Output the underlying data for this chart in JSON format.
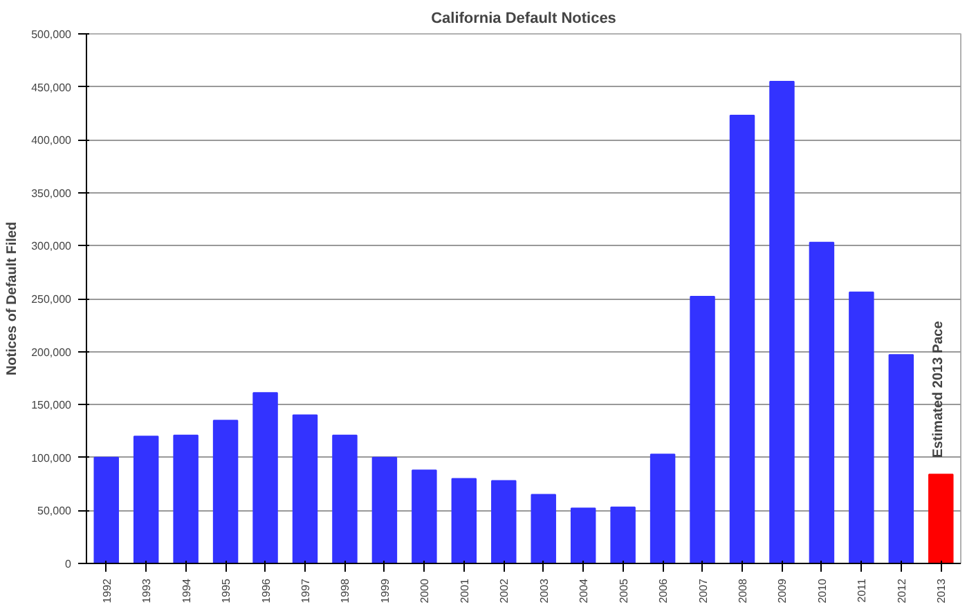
{
  "chart_data": {
    "type": "bar",
    "title": "California Default Notices",
    "ylabel": "Notices of Default Filed",
    "categories": [
      "1992",
      "1993",
      "1994",
      "1995",
      "1996",
      "1997",
      "1998",
      "1999",
      "2000",
      "2001",
      "2002",
      "2003",
      "2004",
      "2005",
      "2006",
      "2007",
      "2008",
      "2009",
      "2010",
      "2011",
      "2012",
      "2013"
    ],
    "values": [
      100000,
      120000,
      121000,
      135000,
      161000,
      140000,
      121000,
      100000,
      88000,
      80000,
      78000,
      65000,
      52000,
      53000,
      103000,
      252000,
      423000,
      455000,
      303000,
      256000,
      197000,
      84000
    ],
    "colors": [
      "#3333ff",
      "#3333ff",
      "#3333ff",
      "#3333ff",
      "#3333ff",
      "#3333ff",
      "#3333ff",
      "#3333ff",
      "#3333ff",
      "#3333ff",
      "#3333ff",
      "#3333ff",
      "#3333ff",
      "#3333ff",
      "#3333ff",
      "#3333ff",
      "#3333ff",
      "#3333ff",
      "#3333ff",
      "#3333ff",
      "#3333ff",
      "#ff0000"
    ],
    "ylim": [
      0,
      500000
    ],
    "yticks": [
      0,
      {
        "value": 50000,
        "label": "50,000"
      },
      {
        "value": 100000,
        "label": "100,000"
      },
      {
        "value": 150000,
        "label": "150,000"
      },
      {
        "value": 200000,
        "label": "200,000"
      },
      {
        "value": 250000,
        "label": "250,000"
      },
      {
        "value": 300000,
        "label": "300,000"
      },
      {
        "value": 350000,
        "label": "350,000"
      },
      {
        "value": 400000,
        "label": "400,000"
      },
      {
        "value": 450000,
        "label": "450,000"
      },
      {
        "value": 500000,
        "label": "500,000"
      }
    ],
    "grid": "y",
    "annotations": [
      {
        "text": "Estimated 2013 Pace",
        "x": "2013",
        "y": 84000
      }
    ]
  }
}
